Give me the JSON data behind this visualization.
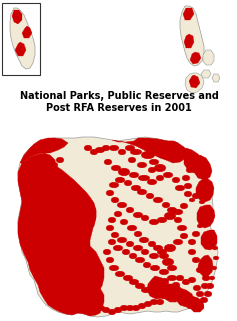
{
  "title_line1": "National Parks, Public Reserves and",
  "title_line2": "Post RFA Reserves in 2001",
  "title_fontsize": 7.0,
  "title_fontweight": "bold",
  "bg_color": "#ffffff",
  "land_color": "#f0ead6",
  "reserve_color": "#cc0000",
  "outline_color": "#999999",
  "fig_width": 2.37,
  "fig_height": 3.21,
  "dpi": 100
}
